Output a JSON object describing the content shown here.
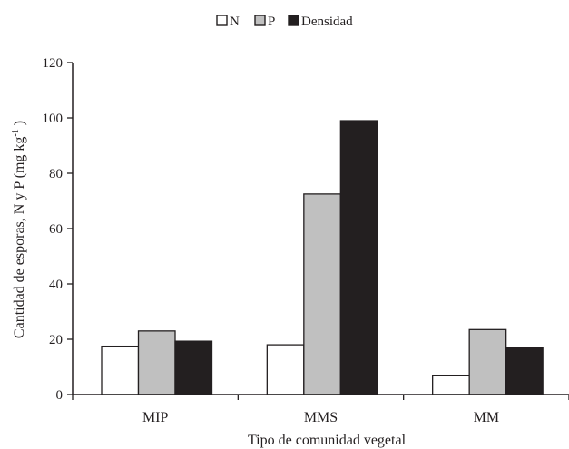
{
  "chart_data": {
    "type": "bar",
    "title": "",
    "categories": [
      "MIP",
      "MMS",
      "MM"
    ],
    "series": [
      {
        "name": "N",
        "values": [
          17.5,
          18,
          7
        ],
        "color": "#ffffff"
      },
      {
        "name": "P",
        "values": [
          23,
          72.5,
          23.5
        ],
        "color": "#c0c0c0"
      },
      {
        "name": "Densidad",
        "values": [
          19.3,
          99,
          17
        ],
        "color": "#231f20"
      }
    ],
    "xlabel": "Tipo de comunidad vegetal",
    "ylabel": "Cantidad de esporas, N y P (mg kg",
    "ylabel_superscript": "-1",
    "ylabel_suffix": " )",
    "ylim": [
      0,
      120
    ],
    "yticks": [
      0,
      20,
      40,
      60,
      80,
      100,
      120
    ],
    "grid": false,
    "legend_position": "top-center"
  }
}
